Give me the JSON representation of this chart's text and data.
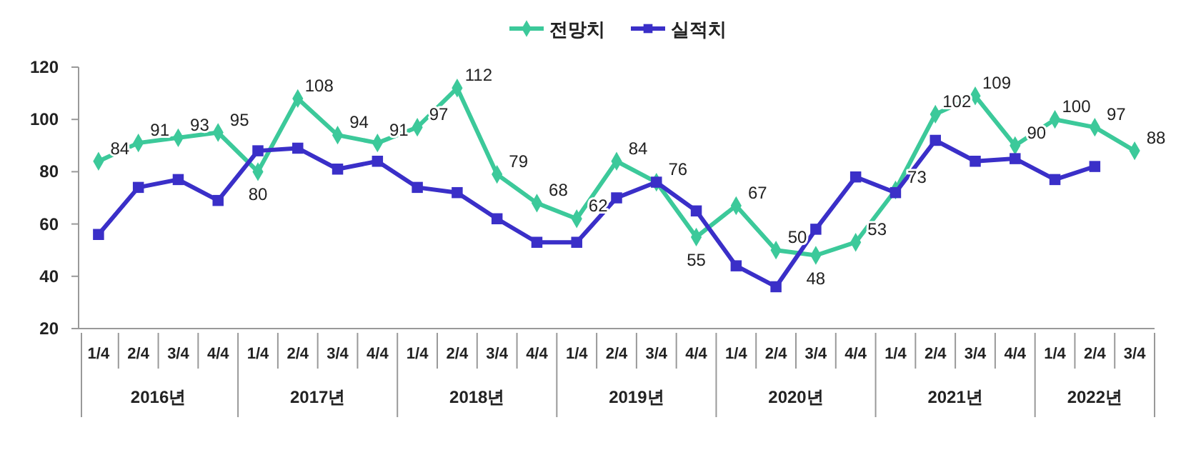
{
  "chart_data": {
    "type": "line",
    "categories": [
      "1/4",
      "2/4",
      "3/4",
      "4/4",
      "1/4",
      "2/4",
      "3/4",
      "4/4",
      "1/4",
      "2/4",
      "3/4",
      "4/4",
      "1/4",
      "2/4",
      "3/4",
      "4/4",
      "1/4",
      "2/4",
      "3/4",
      "4/4",
      "1/4",
      "2/4",
      "3/4",
      "4/4",
      "1/4",
      "2/4",
      "3/4"
    ],
    "annotations": [
      "2016년",
      "2017년",
      "2018년",
      "2019년",
      "2020년",
      "2021년",
      "2022년"
    ],
    "series": [
      {
        "name": "전망치",
        "color": "#3cc99a",
        "marker": "diamond",
        "data_labels": true,
        "values": [
          84,
          91,
          93,
          95,
          80,
          108,
          94,
          91,
          97,
          112,
          79,
          68,
          62,
          84,
          76,
          55,
          67,
          50,
          48,
          53,
          73,
          102,
          109,
          90,
          100,
          97,
          88
        ]
      },
      {
        "name": "실적치",
        "color": "#3a2fc8",
        "marker": "square",
        "values": [
          56,
          74,
          77,
          69,
          88,
          89,
          81,
          84,
          74,
          72,
          62,
          53,
          53,
          70,
          76,
          65,
          44,
          36,
          58,
          78,
          72,
          92,
          84,
          85,
          77,
          82,
          null
        ]
      }
    ],
    "ylim": [
      20,
      120
    ],
    "yticks": [
      20,
      40,
      60,
      80,
      100,
      120
    ],
    "grid": false,
    "legend": "top"
  }
}
